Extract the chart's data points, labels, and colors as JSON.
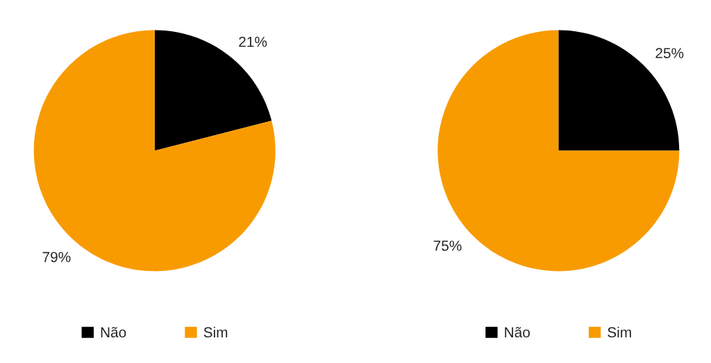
{
  "chart_data": [
    {
      "type": "pie",
      "categories": [
        "Não",
        "Sim"
      ],
      "values": [
        21,
        79
      ],
      "colors": [
        "#000000",
        "#f89b00"
      ],
      "value_labels": [
        "21%",
        "79%"
      ],
      "legend": "bottom"
    },
    {
      "type": "pie",
      "categories": [
        "Não",
        "Sim"
      ],
      "values": [
        25,
        75
      ],
      "colors": [
        "#000000",
        "#f89b00"
      ],
      "value_labels": [
        "25%",
        "75%"
      ],
      "legend": "bottom"
    }
  ]
}
